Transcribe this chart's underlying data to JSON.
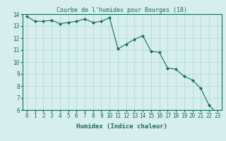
{
  "x": [
    0,
    1,
    2,
    3,
    4,
    5,
    6,
    7,
    8,
    9,
    10,
    11,
    12,
    13,
    14,
    15,
    16,
    17,
    18,
    19,
    20,
    21,
    22,
    23
  ],
  "y": [
    13.8,
    13.4,
    13.4,
    13.5,
    13.2,
    13.3,
    13.4,
    13.6,
    13.3,
    13.4,
    13.7,
    11.1,
    11.5,
    11.9,
    12.2,
    10.9,
    10.8,
    9.5,
    9.4,
    8.8,
    8.5,
    7.8,
    6.4,
    5.7
  ],
  "line_color": "#1a6b5e",
  "marker_color": "#1a6b5e",
  "bg_color": "#d6eeee",
  "grid_color": "#b8d8d8",
  "title": "Courbe de l'humidex pour Bourges (18)",
  "xlabel": "Humidex (Indice chaleur)",
  "xlim": [
    -0.5,
    23.5
  ],
  "ylim": [
    6,
    14
  ],
  "yticks": [
    6,
    7,
    8,
    9,
    10,
    11,
    12,
    13,
    14
  ],
  "xticks": [
    0,
    1,
    2,
    3,
    4,
    5,
    6,
    7,
    8,
    9,
    10,
    11,
    12,
    13,
    14,
    15,
    16,
    17,
    18,
    19,
    20,
    21,
    22,
    23
  ],
  "title_fontsize": 6,
  "label_fontsize": 6.5,
  "tick_fontsize": 5.5
}
